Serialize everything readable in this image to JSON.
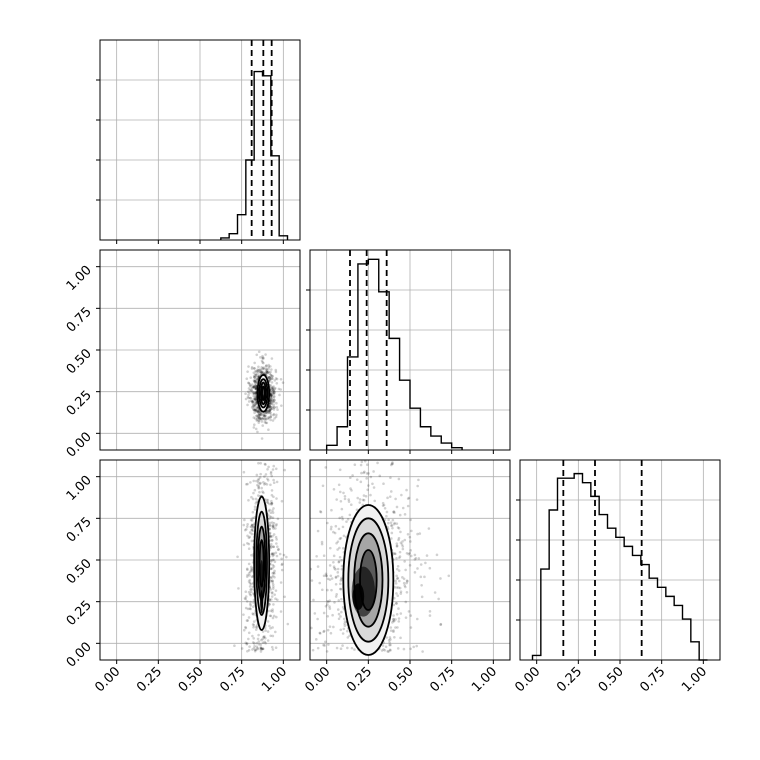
{
  "chart_data": {
    "type": "corner",
    "grid": true,
    "tick_labels": [
      "0.00",
      "0.25",
      "0.50",
      "0.75",
      "1.00"
    ],
    "range": [
      -0.1,
      1.1
    ],
    "panels": [
      {
        "kind": "histogram",
        "row": 0,
        "col": 0,
        "param": 0,
        "bins": [
          0.625,
          0.675,
          0.725,
          0.775,
          0.825,
          0.875,
          0.925,
          0.975,
          1.025
        ],
        "counts": [
          1,
          3,
          12,
          38,
          80,
          78,
          40,
          2
        ],
        "ymax": 95,
        "quantiles": [
          0.81,
          0.88,
          0.93
        ]
      },
      {
        "kind": "histogram",
        "row": 1,
        "col": 1,
        "param": 1,
        "bins": [
          0.0,
          0.0625,
          0.125,
          0.1875,
          0.25,
          0.3125,
          0.375,
          0.4375,
          0.5,
          0.5625,
          0.625,
          0.6875,
          0.75,
          0.8125
        ],
        "counts": [
          2,
          10,
          40,
          80,
          82,
          68,
          48,
          30,
          18,
          10,
          6,
          3,
          1
        ],
        "ymax": 86,
        "quantiles": [
          0.14,
          0.24,
          0.36
        ]
      },
      {
        "kind": "histogram",
        "row": 2,
        "col": 2,
        "param": 2,
        "bins": [
          -0.025,
          0.025,
          0.075,
          0.125,
          0.175,
          0.225,
          0.275,
          0.325,
          0.375,
          0.425,
          0.475,
          0.525,
          0.575,
          0.625,
          0.675,
          0.725,
          0.775,
          0.825,
          0.875,
          0.925,
          0.975,
          1.025
        ],
        "counts": [
          1,
          20,
          33,
          40,
          40,
          41,
          39,
          36,
          32,
          29,
          27,
          25,
          23,
          21,
          18,
          16,
          14,
          12,
          9,
          4,
          0
        ],
        "ymax": 44,
        "quantiles": [
          0.16,
          0.35,
          0.63
        ]
      },
      {
        "kind": "density",
        "row": 1,
        "col": 0,
        "xparam": 0,
        "yparam": 1,
        "center": [
          0.88,
          0.24
        ],
        "contours": [
          [
            0.035,
            0.11
          ],
          [
            0.025,
            0.085
          ],
          [
            0.015,
            0.065
          ],
          [
            0.008,
            0.04
          ]
        ],
        "core": [
          [
            0.87,
            0.25,
            0.008,
            0.025,
            0.95
          ],
          [
            0.875,
            0.22,
            0.006,
            0.015,
            1.0
          ]
        ]
      },
      {
        "kind": "density",
        "row": 2,
        "col": 0,
        "xparam": 0,
        "yparam": 2,
        "center": [
          0.87,
          0.48
        ],
        "contours": [
          [
            0.045,
            0.4
          ],
          [
            0.032,
            0.31
          ],
          [
            0.022,
            0.22
          ],
          [
            0.012,
            0.14
          ]
        ],
        "core": [
          [
            0.87,
            0.34,
            0.012,
            0.16,
            0.75
          ],
          [
            0.87,
            0.25,
            0.008,
            0.07,
            0.95
          ]
        ]
      },
      {
        "kind": "density",
        "row": 2,
        "col": 1,
        "xparam": 1,
        "yparam": 2,
        "center": [
          0.25,
          0.38
        ],
        "contours": [
          [
            0.15,
            0.45
          ],
          [
            0.12,
            0.37
          ],
          [
            0.085,
            0.28
          ],
          [
            0.05,
            0.18
          ]
        ],
        "core": [
          [
            0.22,
            0.31,
            0.07,
            0.15,
            0.6
          ],
          [
            0.19,
            0.28,
            0.035,
            0.08,
            0.9
          ]
        ]
      }
    ]
  }
}
